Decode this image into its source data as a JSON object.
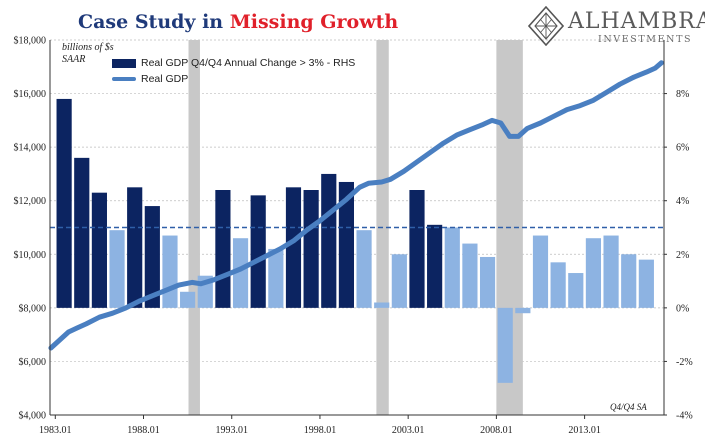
{
  "header": {
    "title_prefix": "Case Study in ",
    "title_highlight": "Missing Growth",
    "logo_name": "ALHAMBRA",
    "logo_sub": "INVESTMENTS"
  },
  "chart_data": {
    "type": "bar+line",
    "units_line1": "billions of $s",
    "units_line2": "SAAR",
    "basis_note": "Q4/Q4 SA",
    "colors": {
      "bar_above": "#0c2461",
      "bar_below": "#8db3e2",
      "line": "#4a7fc1",
      "recession": "#c8c8c8",
      "threshold": "#2f5fa8"
    },
    "x_tick_labels": [
      "1983.01",
      "1988.01",
      "1993.01",
      "1998.01",
      "2003.01",
      "2008.01",
      "2013.01"
    ],
    "x_tick_years": [
      1983,
      1988,
      1993,
      1998,
      2003,
      2008,
      2013
    ],
    "x_range": [
      1982.7,
      2017.5
    ],
    "y_left": {
      "ticks": [
        "$4,000",
        "$6,000",
        "$8,000",
        "$10,000",
        "$12,000",
        "$14,000",
        "$16,000",
        "$18,000"
      ],
      "range": [
        4000,
        18000
      ]
    },
    "y_right": {
      "ticks": [
        "-4%",
        "-2%",
        "0%",
        "2%",
        "4%",
        "6%",
        "8%"
      ],
      "range": [
        -4,
        10
      ],
      "tick_values": [
        -4,
        -2,
        0,
        2,
        4,
        6,
        8
      ]
    },
    "threshold_pct": 3,
    "recessions": [
      [
        1990.55,
        1991.2
      ],
      [
        2001.2,
        2001.9
      ],
      [
        2008.0,
        2009.5
      ]
    ],
    "bars": {
      "name": "Real GDP Q4/Q4 Annual Change > 3% - RHS",
      "years": [
        1983,
        1984,
        1985,
        1986,
        1987,
        1988,
        1989,
        1990,
        1991,
        1992,
        1993,
        1994,
        1995,
        1996,
        1997,
        1998,
        1999,
        2000,
        2001,
        2002,
        2003,
        2004,
        2005,
        2006,
        2007,
        2008,
        2009,
        2010,
        2011,
        2012,
        2013,
        2014,
        2015,
        2016
      ],
      "values": [
        7.8,
        5.6,
        4.3,
        2.9,
        4.5,
        3.8,
        2.7,
        0.6,
        1.2,
        4.4,
        2.6,
        4.2,
        2.2,
        4.5,
        4.4,
        5.0,
        4.7,
        2.9,
        0.2,
        2.0,
        4.4,
        3.1,
        3.0,
        2.4,
        1.9,
        -2.8,
        -0.2,
        2.7,
        1.7,
        1.3,
        2.6,
        2.7,
        2.0,
        1.8
      ]
    },
    "line": {
      "name": "Real GDP",
      "x": [
        1982.75,
        1983.25,
        1983.75,
        1984.25,
        1984.75,
        1985.5,
        1986.25,
        1987.0,
        1987.75,
        1988.5,
        1989.25,
        1990.0,
        1990.75,
        1991.25,
        1992.0,
        1992.75,
        1993.5,
        1994.25,
        1995.0,
        1995.75,
        1996.5,
        1997.25,
        1998.0,
        1998.75,
        1999.5,
        2000.25,
        2000.75,
        2001.5,
        2002.0,
        2002.75,
        2003.5,
        2004.25,
        2005.0,
        2005.75,
        2006.5,
        2007.25,
        2007.75,
        2008.25,
        2008.75,
        2009.25,
        2009.75,
        2010.5,
        2011.25,
        2012.0,
        2012.75,
        2013.5,
        2014.25,
        2015.0,
        2015.75,
        2016.5,
        2017.0,
        2017.35
      ],
      "y": [
        6500,
        6800,
        7100,
        7250,
        7400,
        7650,
        7800,
        8000,
        8250,
        8450,
        8650,
        8850,
        8950,
        8900,
        9050,
        9250,
        9450,
        9700,
        9950,
        10200,
        10500,
        10900,
        11250,
        11650,
        12050,
        12500,
        12650,
        12700,
        12800,
        13100,
        13450,
        13800,
        14150,
        14450,
        14650,
        14850,
        15000,
        14900,
        14400,
        14400,
        14700,
        14900,
        15150,
        15400,
        15550,
        15750,
        16050,
        16350,
        16600,
        16800,
        16950,
        17150
      ]
    }
  }
}
